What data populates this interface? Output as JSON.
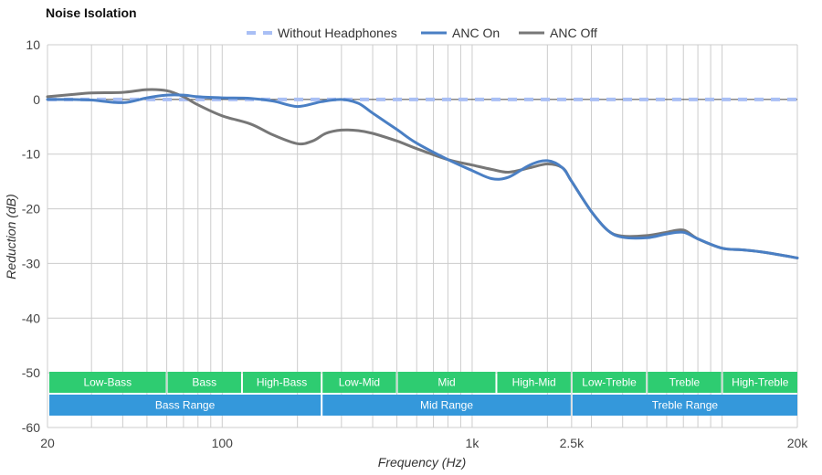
{
  "chart_data": {
    "type": "line",
    "title": "Noise Isolation",
    "xlabel": "Frequency (Hz)",
    "ylabel": "Reduction (dB)",
    "xscale": "log",
    "xlim": [
      20,
      20000
    ],
    "ylim": [
      -60,
      10
    ],
    "grid": true,
    "legend_position": "top-center",
    "x_ticks": [
      {
        "value": 20,
        "label": "20"
      },
      {
        "value": 100,
        "label": "100"
      },
      {
        "value": 1000,
        "label": "1k"
      },
      {
        "value": 2500,
        "label": "2.5k"
      },
      {
        "value": 20000,
        "label": "20k"
      }
    ],
    "y_ticks": [
      10,
      0,
      -10,
      -20,
      -30,
      -40,
      -50,
      -60
    ],
    "series": [
      {
        "name": "Without Headphones",
        "color": "#a9bff5",
        "style": "dashed",
        "x": [
          20,
          20000
        ],
        "y": [
          0,
          0
        ]
      },
      {
        "name": "ANC On",
        "color": "#4a7fc4",
        "style": "solid",
        "x": [
          20,
          25,
          30,
          40,
          50,
          60,
          70,
          80,
          100,
          130,
          160,
          200,
          250,
          300,
          350,
          400,
          500,
          600,
          800,
          1000,
          1200,
          1400,
          1700,
          2000,
          2300,
          2500,
          3000,
          3500,
          4000,
          5000,
          6000,
          7000,
          8000,
          10000,
          12000,
          15000,
          20000
        ],
        "y": [
          0,
          0,
          -0.1,
          -0.6,
          0.3,
          0.8,
          0.8,
          0.5,
          0.3,
          0.2,
          -0.3,
          -1.3,
          -0.4,
          0,
          -0.7,
          -2.5,
          -5.5,
          -8,
          -11,
          -13,
          -14.5,
          -14.2,
          -12,
          -11.2,
          -12.5,
          -15,
          -20.5,
          -24,
          -25.2,
          -25.3,
          -24.6,
          -24.3,
          -25.5,
          -27.2,
          -27.5,
          -28,
          -29
        ]
      },
      {
        "name": "ANC Off",
        "color": "#777777",
        "style": "solid",
        "x": [
          20,
          25,
          30,
          40,
          50,
          60,
          70,
          80,
          100,
          130,
          160,
          200,
          230,
          260,
          300,
          350,
          400,
          500,
          600,
          800,
          1000,
          1200,
          1400,
          1700,
          2000,
          2300,
          2500,
          3000,
          3500,
          4000,
          5000,
          6000,
          7000,
          8000,
          10000,
          12000,
          15000,
          20000
        ],
        "y": [
          0.5,
          0.9,
          1.2,
          1.3,
          1.8,
          1.6,
          0.5,
          -1,
          -3,
          -4.5,
          -6.5,
          -8.1,
          -7.6,
          -6.2,
          -5.6,
          -5.7,
          -6.2,
          -7.6,
          -9,
          -11,
          -12,
          -12.8,
          -13.3,
          -12.5,
          -11.8,
          -12.5,
          -15,
          -20.5,
          -24,
          -25,
          -24.9,
          -24.3,
          -23.9,
          -25.5,
          -27.2,
          -27.5,
          -28,
          -29
        ]
      }
    ],
    "bands_top": [
      {
        "label": "Low-Bass",
        "from": 20,
        "to": 60
      },
      {
        "label": "Bass",
        "from": 60,
        "to": 120
      },
      {
        "label": "High-Bass",
        "from": 120,
        "to": 250
      },
      {
        "label": "Low-Mid",
        "from": 250,
        "to": 500
      },
      {
        "label": "Mid",
        "from": 500,
        "to": 1250
      },
      {
        "label": "High-Mid",
        "from": 1250,
        "to": 2500
      },
      {
        "label": "Low-Treble",
        "from": 2500,
        "to": 5000
      },
      {
        "label": "Treble",
        "from": 5000,
        "to": 10000
      },
      {
        "label": "High-Treble",
        "from": 10000,
        "to": 20000
      }
    ],
    "bands_bottom": [
      {
        "label": "Bass Range",
        "from": 20,
        "to": 250
      },
      {
        "label": "Mid Range",
        "from": 250,
        "to": 2500
      },
      {
        "label": "Treble Range",
        "from": 2500,
        "to": 20000
      }
    ],
    "band_colors": {
      "top": "#2ecc71",
      "bottom": "#3498db"
    }
  }
}
